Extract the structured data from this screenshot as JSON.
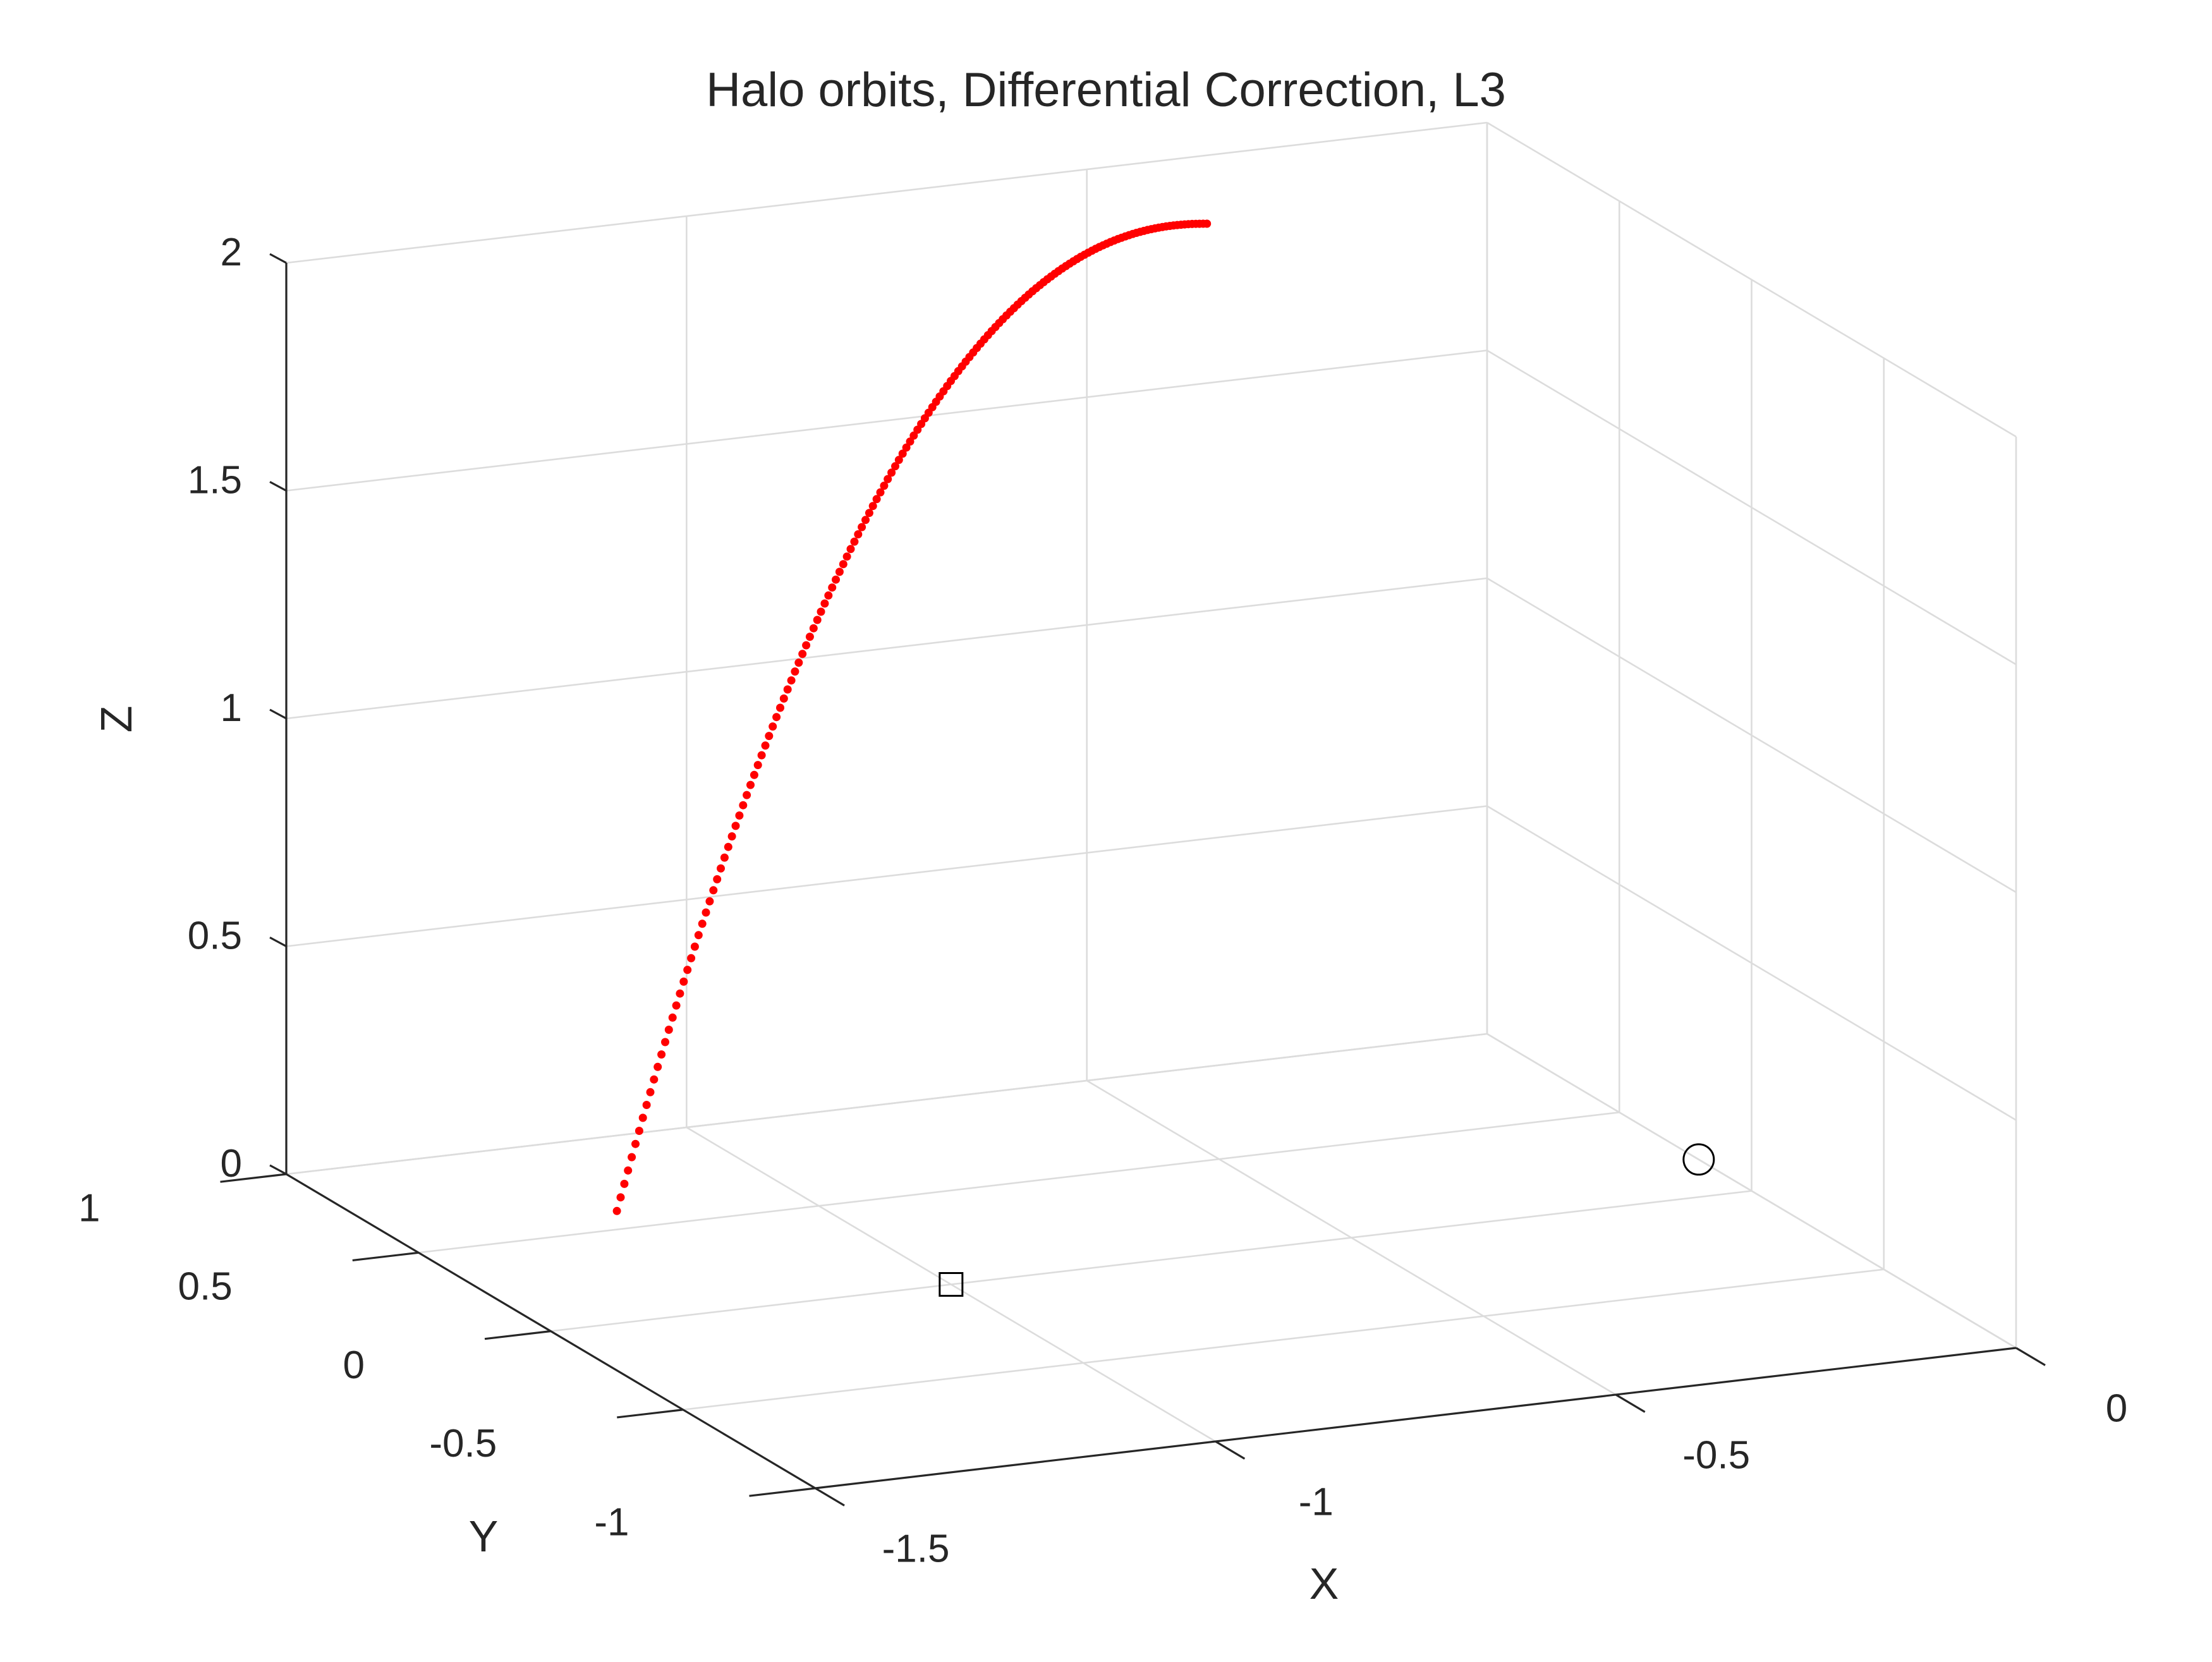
{
  "chart_data": {
    "type": "scatter",
    "projection": "3d",
    "title": "Halo orbits, Differential Correction, L3",
    "xlabel": "X",
    "ylabel": "Y",
    "zlabel": "Z",
    "xlim": [
      -1.5,
      0
    ],
    "ylim": [
      -1,
      1
    ],
    "zlim": [
      0,
      2
    ],
    "x_ticks": [
      "-1.5",
      "-1",
      "-0.5",
      "0"
    ],
    "y_ticks": [
      "-1",
      "-0.5",
      "0",
      "0.5",
      "1"
    ],
    "z_ticks": [
      "0",
      "0.5",
      "1",
      "1.5",
      "2"
    ],
    "grid": true,
    "colors": {
      "series": "#ff0000",
      "markers": "#000000",
      "grid": "#dcdcdc",
      "axes": "#262626"
    },
    "series": [
      {
        "marker": "*",
        "color": "#ff0000",
        "start": [
          -1.5,
          -0.25,
          0.35
        ],
        "end": [
          -0.35,
          1.0,
          1.85
        ],
        "count": 160
      }
    ],
    "markers": [
      {
        "shape": "square",
        "x": -1.0,
        "y": 0.0,
        "z": 0
      },
      {
        "shape": "circle",
        "x": 0.0,
        "y": 0.2,
        "z": 0
      }
    ]
  }
}
